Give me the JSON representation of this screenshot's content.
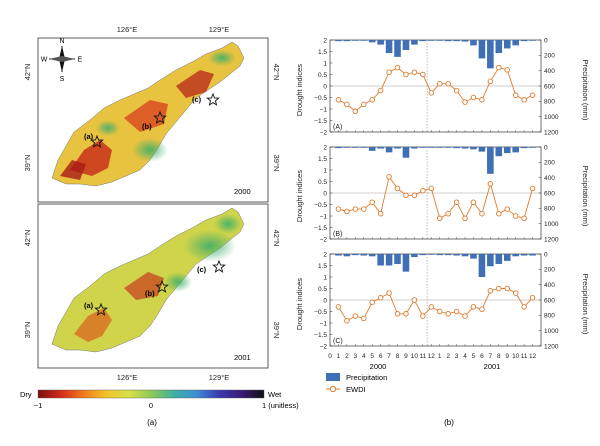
{
  "colors": {
    "precip": "#3f6fb5",
    "ewdi": "#e07b2e",
    "frame": "#333333",
    "water": "#bcd7ee"
  },
  "left_panel": {
    "maps": [
      {
        "year": "2000",
        "site_labels": [
          "(a)",
          "(b)",
          "(c)"
        ]
      },
      {
        "year": "2001",
        "site_labels": [
          "(a)",
          "(b)",
          "(c)"
        ]
      }
    ],
    "lon_labels": [
      "126°E",
      "129°E"
    ],
    "lat_labels": [
      "42°N",
      "39°N"
    ],
    "compass": {
      "n": "N",
      "s": "S",
      "e": "E",
      "w": "W"
    },
    "colorbar": {
      "left_label": "Dry",
      "right_label": "Wet",
      "ticks": [
        "−1",
        "0",
        "1 (unitless)"
      ],
      "colors": [
        "#7a1010",
        "#d42a1a",
        "#f07a1e",
        "#f3c328",
        "#d9e04a",
        "#8fca55",
        "#3fb0a0",
        "#3c8fd6",
        "#3a3bb0",
        "#3a1a78",
        "#111111"
      ]
    },
    "caption": "(a)"
  },
  "right_panel": {
    "caption": "(b)",
    "y_left_label": "Drought indices",
    "y_right_label": "Precipitation (mm)",
    "y_left_ticks": [
      "2",
      "1.5",
      "1",
      "0.5",
      "0",
      "−0.5",
      "−1",
      "−1.5",
      "−2"
    ],
    "y_right_ticks": [
      "0",
      "200",
      "400",
      "600",
      "800",
      "1000",
      "1200"
    ],
    "x_ticks": [
      "0",
      "1",
      "2",
      "3",
      "4",
      "5",
      "6",
      "7",
      "8",
      "9",
      "10",
      "11",
      "12",
      "1",
      "2",
      "3",
      "4",
      "5",
      "6",
      "7",
      "8",
      "9",
      "10",
      "11",
      "12"
    ],
    "year_labels": [
      "2000",
      "2001"
    ],
    "legend": {
      "precip": "Precipitation",
      "ewdi": "EWDI"
    }
  },
  "chart_data": [
    {
      "type": "bar",
      "panel": "(A)",
      "x": [
        1,
        2,
        3,
        4,
        5,
        6,
        7,
        8,
        9,
        10,
        11,
        12,
        13,
        14,
        15,
        16,
        17,
        18,
        19,
        20,
        21,
        22,
        23,
        24
      ],
      "series": [
        {
          "name": "Precipitation",
          "axis": "right",
          "values": [
            15,
            15,
            10,
            10,
            30,
            60,
            170,
            220,
            130,
            60,
            15,
            10,
            10,
            15,
            15,
            20,
            70,
            240,
            370,
            170,
            110,
            70,
            15,
            10
          ]
        },
        {
          "name": "EWDI",
          "axis": "left",
          "values": [
            -0.6,
            -0.8,
            -1.1,
            -0.8,
            -0.6,
            -0.2,
            0.6,
            0.8,
            0.5,
            0.6,
            0.5,
            -0.3,
            0.1,
            0.1,
            -0.2,
            -0.7,
            -0.5,
            -0.6,
            0.2,
            0.8,
            0.7,
            -0.4,
            -0.6,
            -0.4
          ]
        }
      ],
      "ylim_left": [
        -2,
        2
      ],
      "ylim_right": [
        1200,
        0
      ]
    },
    {
      "type": "bar",
      "panel": "(B)",
      "x": [
        1,
        2,
        3,
        4,
        5,
        6,
        7,
        8,
        9,
        10,
        11,
        12,
        13,
        14,
        15,
        16,
        17,
        18,
        19,
        20,
        21,
        22,
        23,
        24
      ],
      "series": [
        {
          "name": "Precipitation",
          "axis": "right",
          "values": [
            15,
            10,
            10,
            10,
            50,
            20,
            70,
            20,
            140,
            20,
            10,
            10,
            10,
            10,
            15,
            20,
            30,
            60,
            350,
            120,
            80,
            70,
            15,
            10
          ]
        },
        {
          "name": "EWDI",
          "axis": "left",
          "values": [
            -0.7,
            -0.8,
            -0.7,
            -0.7,
            -0.4,
            -0.9,
            0.7,
            0.2,
            -0.1,
            -0.1,
            0.1,
            0.2,
            -1.1,
            -0.9,
            -0.4,
            -1.1,
            -0.4,
            -0.9,
            0.4,
            -0.9,
            -0.7,
            -1.0,
            -1.1,
            0.2
          ]
        }
      ],
      "ylim_left": [
        -2,
        2
      ],
      "ylim_right": [
        1200,
        0
      ]
    },
    {
      "type": "bar",
      "panel": "(C)",
      "x": [
        1,
        2,
        3,
        4,
        5,
        6,
        7,
        8,
        9,
        10,
        11,
        12,
        13,
        14,
        15,
        16,
        17,
        18,
        19,
        20,
        21,
        22,
        23,
        24
      ],
      "series": [
        {
          "name": "Precipitation",
          "axis": "right",
          "values": [
            20,
            30,
            15,
            20,
            30,
            150,
            150,
            130,
            230,
            40,
            15,
            10,
            15,
            15,
            20,
            30,
            60,
            300,
            160,
            130,
            90,
            30,
            20,
            20
          ]
        },
        {
          "name": "EWDI",
          "axis": "left",
          "values": [
            -0.3,
            -0.9,
            -0.7,
            -0.8,
            -0.1,
            0.1,
            0.3,
            -0.6,
            -0.6,
            0.0,
            -0.7,
            -0.3,
            -0.5,
            -0.6,
            -0.5,
            -0.7,
            -0.3,
            -0.4,
            0.4,
            0.5,
            0.5,
            0.3,
            -0.3,
            0.1
          ]
        }
      ],
      "ylim_left": [
        -2,
        2
      ],
      "ylim_right": [
        1200,
        0
      ]
    }
  ]
}
